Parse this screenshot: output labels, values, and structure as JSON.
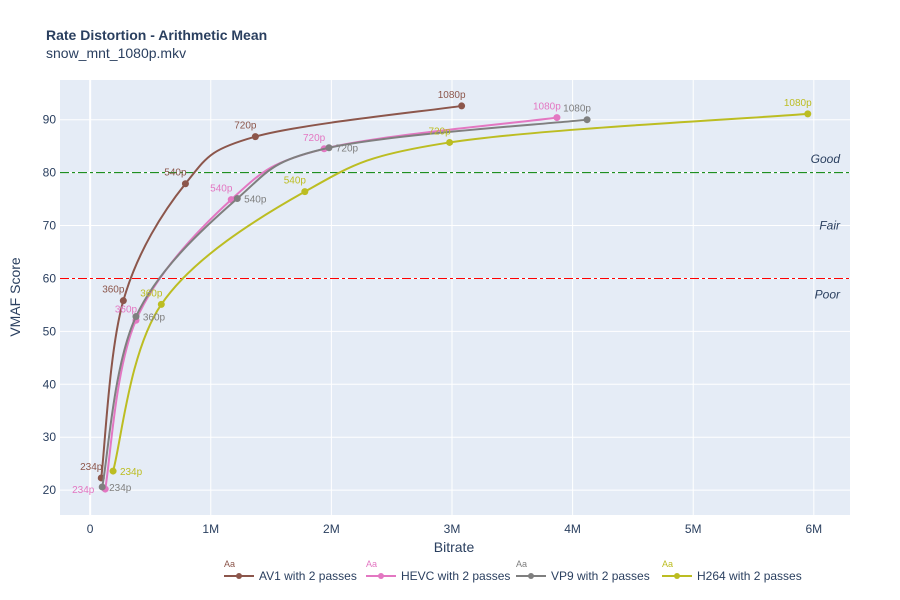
{
  "chart_data": {
    "type": "line",
    "title": "Rate Distortion - Arithmetic Mean",
    "subtitle": "snow_mnt_1080p.mkv",
    "xlabel": "Bitrate",
    "ylabel": "VMAF Score",
    "xlim": [
      -250000,
      6300000
    ],
    "ylim": [
      15.3,
      97.5
    ],
    "xticks": [
      0,
      1000000,
      2000000,
      3000000,
      4000000,
      5000000,
      6000000
    ],
    "xtick_labels": [
      "0",
      "1M",
      "2M",
      "3M",
      "4M",
      "5M",
      "6M"
    ],
    "yticks": [
      20,
      30,
      40,
      50,
      60,
      70,
      80,
      90
    ],
    "ytick_labels": [
      "20",
      "30",
      "40",
      "50",
      "60",
      "70",
      "80",
      "90"
    ],
    "grid": true,
    "legend_placement": "bottom",
    "legend_symbol_text": "Aa",
    "thresholds": [
      {
        "value": 80,
        "color": "#008000",
        "label": "Good",
        "label_y": 82.6
      },
      {
        "value": 60,
        "color": "#ff0000",
        "label": "Poor",
        "label_y": 57
      }
    ],
    "zone_labels": [
      {
        "label": "Fair",
        "y": 70
      }
    ],
    "series": [
      {
        "name": "AV1 with 2 passes",
        "color": "#8c564b",
        "points": [
          {
            "x": 92000,
            "y": 22.3,
            "label": "234p"
          },
          {
            "x": 275000,
            "y": 55.8,
            "label": "360p"
          },
          {
            "x": 790000,
            "y": 77.9,
            "label": "540p"
          },
          {
            "x": 1370000,
            "y": 86.8,
            "label": "720p"
          },
          {
            "x": 3080000,
            "y": 92.6,
            "label": "1080p"
          }
        ]
      },
      {
        "name": "HEVC with 2 passes",
        "color": "#e377c2",
        "points": [
          {
            "x": 125000,
            "y": 20.2,
            "label": "234p"
          },
          {
            "x": 380000,
            "y": 52.1,
            "label": "360p"
          },
          {
            "x": 1170000,
            "y": 74.9,
            "label": "540p"
          },
          {
            "x": 1940000,
            "y": 84.5,
            "label": "720p"
          },
          {
            "x": 3870000,
            "y": 90.4,
            "label": "1080p"
          }
        ]
      },
      {
        "name": "VP9 with 2 passes",
        "color": "#7f7f7f",
        "points": [
          {
            "x": 100000,
            "y": 20.6,
            "label": "234p"
          },
          {
            "x": 380000,
            "y": 52.8,
            "label": "360p"
          },
          {
            "x": 1220000,
            "y": 75.1,
            "label": "540p"
          },
          {
            "x": 1980000,
            "y": 84.7,
            "label": "720p"
          },
          {
            "x": 4120000,
            "y": 90.0,
            "label": "1080p"
          }
        ]
      },
      {
        "name": "H264 with 2 passes",
        "color": "#bcbd22",
        "points": [
          {
            "x": 190000,
            "y": 23.6,
            "label": "234p"
          },
          {
            "x": 590000,
            "y": 55.1,
            "label": "360p"
          },
          {
            "x": 1780000,
            "y": 76.4,
            "label": "540p"
          },
          {
            "x": 2980000,
            "y": 85.7,
            "label": "720p"
          },
          {
            "x": 5950000,
            "y": 91.1,
            "label": "1080p"
          }
        ]
      }
    ]
  }
}
